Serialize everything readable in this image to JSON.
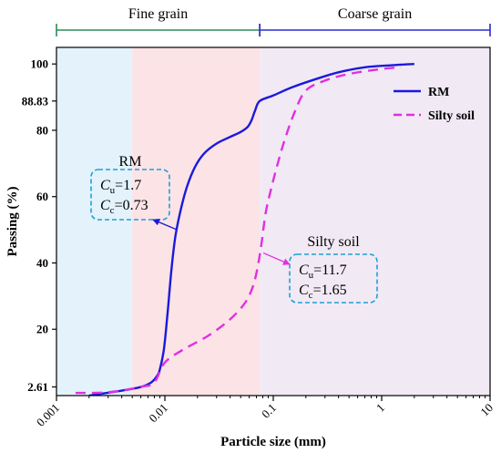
{
  "chart_data": {
    "type": "line",
    "xlabel": "Particle size (mm)",
    "ylabel": "Passing (%)",
    "x_scale": "log",
    "xlim": [
      0.001,
      10
    ],
    "ylim": [
      0,
      105
    ],
    "x_ticks": [
      "0.001",
      "0.01",
      "0.1",
      "1",
      "10"
    ],
    "y_ticks": [
      2.61,
      20,
      40,
      60,
      80,
      88.83,
      100
    ],
    "y_tick_labels": [
      "2.61",
      "20",
      "40",
      "60",
      "80",
      "88.83",
      "100"
    ],
    "grain_bands": [
      {
        "label": "Fine grain",
        "from": 0.001,
        "to": 0.075,
        "color": "#2e8b57"
      },
      {
        "label": "Coarse grain",
        "from": 0.075,
        "to": 10,
        "color": "#2b2bcf"
      }
    ],
    "shaded_regions": [
      {
        "from": 0.001,
        "to": 0.005,
        "color": "#e3f2fb"
      },
      {
        "from": 0.005,
        "to": 0.075,
        "color": "#fbe3e6"
      },
      {
        "from": 0.075,
        "to": 10,
        "color": "#f1e9f4"
      }
    ],
    "series": [
      {
        "name": "RM",
        "color": "#1a1adb",
        "dash": "solid",
        "points": [
          [
            0.002,
            0
          ],
          [
            0.004,
            1.5
          ],
          [
            0.006,
            2.6
          ],
          [
            0.0075,
            4
          ],
          [
            0.0085,
            6
          ],
          [
            0.009,
            8
          ],
          [
            0.0098,
            14
          ],
          [
            0.0106,
            25
          ],
          [
            0.0115,
            38
          ],
          [
            0.0125,
            48
          ],
          [
            0.014,
            56
          ],
          [
            0.016,
            63
          ],
          [
            0.019,
            69
          ],
          [
            0.023,
            73
          ],
          [
            0.03,
            76
          ],
          [
            0.04,
            78
          ],
          [
            0.05,
            79.5
          ],
          [
            0.058,
            81
          ],
          [
            0.063,
            83
          ],
          [
            0.068,
            86
          ],
          [
            0.075,
            88.83
          ],
          [
            0.1,
            90.5
          ],
          [
            0.15,
            93
          ],
          [
            0.25,
            95.5
          ],
          [
            0.4,
            97.5
          ],
          [
            0.7,
            99
          ],
          [
            1.2,
            99.6
          ],
          [
            2.0,
            100
          ]
        ]
      },
      {
        "name": "Silty soil",
        "color": "#e030e0",
        "dash": "dashed",
        "points": [
          [
            0.0015,
            0.8
          ],
          [
            0.003,
            1
          ],
          [
            0.006,
            2.61
          ],
          [
            0.008,
            4
          ],
          [
            0.01,
            10
          ],
          [
            0.015,
            14
          ],
          [
            0.025,
            18
          ],
          [
            0.04,
            23
          ],
          [
            0.055,
            28
          ],
          [
            0.065,
            33
          ],
          [
            0.072,
            39
          ],
          [
            0.078,
            46
          ],
          [
            0.085,
            55
          ],
          [
            0.095,
            62
          ],
          [
            0.11,
            70
          ],
          [
            0.13,
            78
          ],
          [
            0.16,
            86
          ],
          [
            0.2,
            92
          ],
          [
            0.3,
            95
          ],
          [
            0.5,
            97
          ],
          [
            1.0,
            98.5
          ],
          [
            1.5,
            99
          ]
        ]
      }
    ],
    "legend": {
      "position": "top-right",
      "entries": [
        "RM",
        "Silty soil"
      ]
    },
    "annotations": [
      {
        "id": "rm",
        "title": "RM",
        "cu": "=1.7",
        "cc": "=0.73",
        "arrow_target": [
          0.0125,
          50
        ]
      },
      {
        "id": "silty",
        "title": "Silty soil",
        "cu": "=11.7",
        "cc": "=1.65",
        "arrow_target": [
          0.078,
          43
        ]
      }
    ],
    "symbols": {
      "c": "C",
      "u": "u",
      "cc_sub": "c"
    },
    "grid": false
  }
}
